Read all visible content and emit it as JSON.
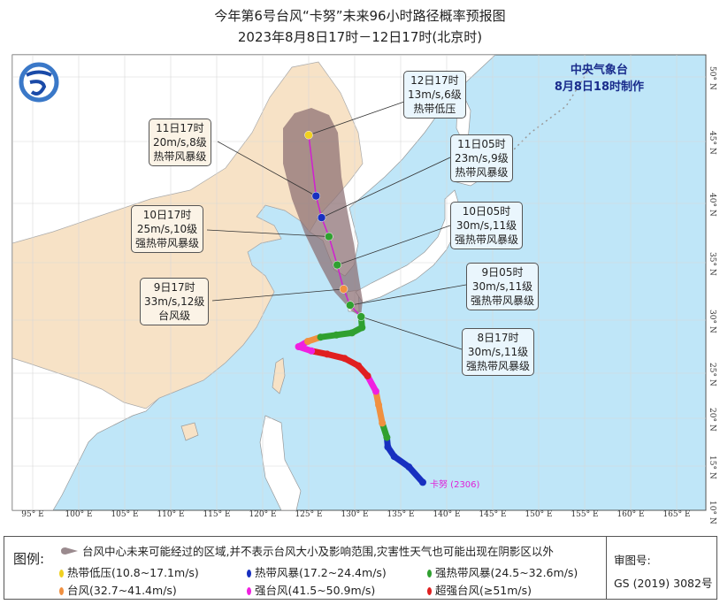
{
  "title": "今年第6号台风“卡努”未来96小时路径概率预报图",
  "subtitle": "2023年8月8日17时－12日17时(北京时)",
  "agency": "中央气象台",
  "issued": "8月8日18时制作",
  "typhoon_label": "卡努 (2306)",
  "map": {
    "lon_ticks": [
      "95° E",
      "100° E",
      "105° E",
      "110° E",
      "115° E",
      "120° E",
      "125° E",
      "130° E",
      "135° E",
      "140° E",
      "145° E",
      "150° E",
      "155° E",
      "160° E",
      "165° E"
    ],
    "lat_ticks": [
      "10° N",
      "15° N",
      "20° N",
      "25° N",
      "30° N",
      "35° N",
      "40° N",
      "45° N",
      "50° N"
    ],
    "lon_range": [
      93,
      170
    ],
    "lat_range": [
      10,
      52
    ],
    "colors": {
      "sea": "#bfe6f8",
      "china": "#f7e2c6",
      "other_land": "#ffffff",
      "cone": "#8a6e72",
      "forecast_line": "#d020d0"
    }
  },
  "category_colors": {
    "TD": "#f0d020",
    "TS": "#1830c0",
    "STS": "#30a030",
    "TY": "#f09040",
    "STY": "#f020e0",
    "SuperTY": "#e02020"
  },
  "past_track": [
    {
      "lon": 137.4,
      "lat": 13.2,
      "cat": "TS"
    },
    {
      "lon": 135.9,
      "lat": 14.9,
      "cat": "TS"
    },
    {
      "lon": 134.3,
      "lat": 16.0,
      "cat": "TS"
    },
    {
      "lon": 133.6,
      "lat": 17.0,
      "cat": "TS"
    },
    {
      "lon": 133.5,
      "lat": 18.0,
      "cat": "STS"
    },
    {
      "lon": 133.0,
      "lat": 19.5,
      "cat": "TY"
    },
    {
      "lon": 132.6,
      "lat": 21.5,
      "cat": "TY"
    },
    {
      "lon": 132.3,
      "lat": 23.0,
      "cat": "STY"
    },
    {
      "lon": 131.4,
      "lat": 24.7,
      "cat": "SuperTY"
    },
    {
      "lon": 130.4,
      "lat": 25.7,
      "cat": "SuperTY"
    },
    {
      "lon": 128.9,
      "lat": 26.4,
      "cat": "SuperTY"
    },
    {
      "lon": 127.0,
      "lat": 26.8,
      "cat": "SuperTY"
    },
    {
      "lon": 125.3,
      "lat": 27.1,
      "cat": "STY"
    },
    {
      "lon": 123.9,
      "lat": 27.5,
      "cat": "STY"
    },
    {
      "lon": 124.9,
      "lat": 28.0,
      "cat": "TY"
    },
    {
      "lon": 126.3,
      "lat": 28.4,
      "cat": "STS"
    },
    {
      "lon": 128.0,
      "lat": 28.6,
      "cat": "STS"
    },
    {
      "lon": 129.7,
      "lat": 28.8,
      "cat": "STS"
    },
    {
      "lon": 130.8,
      "lat": 29.3,
      "cat": "STS"
    },
    {
      "lon": 130.7,
      "lat": 30.3,
      "cat": "STS"
    }
  ],
  "forecast": [
    {
      "time": "8日17时",
      "wind": "30m/s,11级",
      "level": "强热带风暴级",
      "cat": "STS",
      "lon": 130.7,
      "lat": 30.3
    },
    {
      "time": "9日05时",
      "wind": "30m/s,11级",
      "level": "强热带风暴级",
      "cat": "STS",
      "lon": 129.5,
      "lat": 31.3
    },
    {
      "time": "9日17时",
      "wind": "33m/s,12级",
      "level": "台风级",
      "cat": "TY",
      "lon": 128.8,
      "lat": 32.7
    },
    {
      "time": "10日05时",
      "wind": "30m/s,11级",
      "level": "强热带风暴级",
      "cat": "STS",
      "lon": 128.1,
      "lat": 34.8
    },
    {
      "time": "10日17时",
      "wind": "25m/s,10级",
      "level": "强热带风暴级",
      "cat": "STS",
      "lon": 127.2,
      "lat": 37.2
    },
    {
      "time": "11日05时",
      "wind": "23m/s,9级",
      "level": "热带风暴级",
      "cat": "TS",
      "lon": 126.4,
      "lat": 38.8
    },
    {
      "time": "11日17时",
      "wind": "20m/s,8级",
      "level": "热带风暴级",
      "cat": "TS",
      "lon": 125.8,
      "lat": 40.6
    },
    {
      "time": "12日17时",
      "wind": "13m/s,6级",
      "level": "热带低压",
      "cat": "TD",
      "lon": 125.0,
      "lat": 45.5
    }
  ],
  "legend": {
    "label": "图例:",
    "cone_text": "台风中心未来可能经过的区域,并不表示台风大小及影响范围,灾害性天气也可能出现在阴影区以外",
    "items": [
      {
        "text": "热带低压(10.8~17.1m/s)",
        "cat": "TD"
      },
      {
        "text": "热带风暴(17.2~24.4m/s)",
        "cat": "TS"
      },
      {
        "text": "强热带风暴(24.5~32.6m/s)",
        "cat": "STS"
      },
      {
        "text": "台风(32.7~41.4m/s)",
        "cat": "TY"
      },
      {
        "text": "强台风(41.5~50.9m/s)",
        "cat": "STY"
      },
      {
        "text": "超强台风(≥51m/s)",
        "cat": "SuperTY"
      }
    ],
    "approval_label": "审图号:",
    "approval_number": "GS (2019) 3082号"
  }
}
